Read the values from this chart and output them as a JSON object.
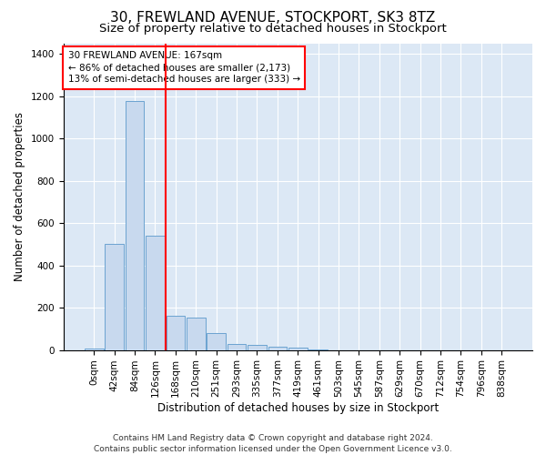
{
  "title": "30, FREWLAND AVENUE, STOCKPORT, SK3 8TZ",
  "subtitle": "Size of property relative to detached houses in Stockport",
  "xlabel": "Distribution of detached houses by size in Stockport",
  "ylabel": "Number of detached properties",
  "property_label": "30 FREWLAND AVENUE: 167sqm",
  "annotation_line1": "← 86% of detached houses are smaller (2,173)",
  "annotation_line2": "13% of semi-detached houses are larger (333) →",
  "footer_line1": "Contains HM Land Registry data © Crown copyright and database right 2024.",
  "footer_line2": "Contains public sector information licensed under the Open Government Licence v3.0.",
  "bar_labels": [
    "0sqm",
    "42sqm",
    "84sqm",
    "126sqm",
    "168sqm",
    "210sqm",
    "251sqm",
    "293sqm",
    "335sqm",
    "377sqm",
    "419sqm",
    "461sqm",
    "503sqm",
    "545sqm",
    "587sqm",
    "629sqm",
    "670sqm",
    "712sqm",
    "754sqm",
    "796sqm",
    "838sqm"
  ],
  "bar_values": [
    5,
    500,
    1175,
    540,
    160,
    155,
    80,
    30,
    25,
    15,
    12,
    3,
    0,
    0,
    0,
    0,
    0,
    0,
    0,
    0,
    0
  ],
  "bar_color": "#c8d9ee",
  "bar_edge_color": "#6ba3d0",
  "redline_index": 4,
  "ylim": [
    0,
    1450
  ],
  "yticks": [
    0,
    200,
    400,
    600,
    800,
    1000,
    1200,
    1400
  ],
  "background_color": "#dce8f5",
  "grid_color": "#ffffff",
  "fig_bg_color": "#ffffff",
  "title_fontsize": 11,
  "subtitle_fontsize": 9.5,
  "axis_label_fontsize": 8.5,
  "tick_fontsize": 7.5,
  "footer_fontsize": 6.5,
  "annotation_fontsize": 7.5
}
